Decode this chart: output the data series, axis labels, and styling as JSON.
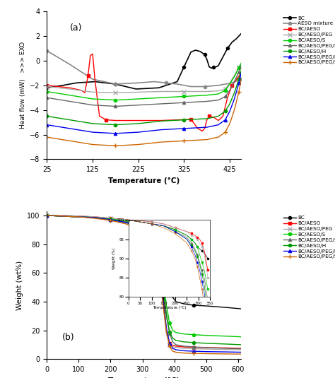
{
  "panel_a": {
    "title": "(a)",
    "xlabel": "Temperature (°C)",
    "ylabel": "Heat flow (mW)   >>> EXO",
    "xlim": [
      25,
      450
    ],
    "ylim": [
      -8,
      4
    ],
    "xticks": [
      25,
      125,
      225,
      325,
      425
    ],
    "yticks": [
      -8,
      -6,
      -4,
      -2,
      0,
      2,
      4
    ],
    "series": [
      {
        "label": "BC",
        "color": "#000000",
        "marker": "o",
        "lw": 1.2,
        "x": [
          25,
          60,
          90,
          130,
          175,
          220,
          270,
          310,
          325,
          340,
          350,
          360,
          370,
          375,
          380,
          385,
          390,
          395,
          400,
          410,
          420,
          430,
          440,
          450
        ],
        "y": [
          -2.2,
          -2.0,
          -1.8,
          -1.7,
          -1.9,
          -2.3,
          -2.2,
          -1.7,
          -0.5,
          0.7,
          0.85,
          0.75,
          0.5,
          0.1,
          -0.5,
          -0.6,
          -0.55,
          -0.5,
          -0.4,
          0.3,
          1.0,
          1.5,
          1.8,
          2.2
        ]
      },
      {
        "label": "AESO mixture",
        "color": "#888888",
        "marker": "o",
        "lw": 1.2,
        "x": [
          25,
          75,
          125,
          175,
          225,
          260,
          285,
          310,
          340,
          370,
          400,
          430,
          450
        ],
        "y": [
          0.8,
          -0.3,
          -1.5,
          -1.9,
          -1.8,
          -1.7,
          -1.8,
          -1.9,
          -2.1,
          -2.1,
          -2.0,
          -1.8,
          -1.5
        ]
      },
      {
        "label": "BC/AESO",
        "color": "#ff0000",
        "marker": "s",
        "lw": 1.0,
        "x": [
          25,
          50,
          75,
          100,
          108,
          115,
          120,
          125,
          130,
          140,
          155,
          175,
          225,
          275,
          310,
          340,
          355,
          365,
          370,
          375,
          380,
          390,
          400,
          410,
          420,
          430,
          440,
          450
        ],
        "y": [
          -2.0,
          -2.1,
          -2.2,
          -2.4,
          -2.6,
          -1.2,
          0.4,
          0.55,
          -1.5,
          -4.5,
          -4.8,
          -4.85,
          -4.85,
          -4.85,
          -4.8,
          -4.75,
          -5.5,
          -5.7,
          -5.5,
          -4.8,
          -4.5,
          -4.6,
          -4.85,
          -4.5,
          -3.0,
          -2.0,
          -1.5,
          -1.0
        ]
      },
      {
        "label": "BC/AESO/PEG",
        "color": "#aaaaaa",
        "marker": "x",
        "lw": 1.0,
        "x": [
          25,
          75,
          125,
          175,
          225,
          275,
          325,
          375,
          400,
          415,
          425,
          435,
          445,
          450
        ],
        "y": [
          -2.1,
          -2.3,
          -2.55,
          -2.6,
          -2.55,
          -2.5,
          -2.5,
          -2.5,
          -2.45,
          -2.3,
          -1.8,
          -1.2,
          -0.5,
          -0.2
        ]
      },
      {
        "label": "BC/AESO/S",
        "color": "#00cc00",
        "marker": "o",
        "lw": 1.0,
        "x": [
          25,
          75,
          125,
          175,
          225,
          275,
          325,
          375,
          400,
          415,
          425,
          435,
          445,
          450
        ],
        "y": [
          -2.5,
          -2.8,
          -3.1,
          -3.2,
          -3.1,
          -3.0,
          -2.9,
          -2.8,
          -2.7,
          -2.4,
          -1.9,
          -1.3,
          -0.6,
          -0.2
        ]
      },
      {
        "label": "BC/AESO/PEG/S",
        "color": "#666666",
        "marker": "^",
        "lw": 1.0,
        "x": [
          25,
          75,
          125,
          175,
          225,
          275,
          325,
          375,
          400,
          415,
          425,
          435,
          445,
          450
        ],
        "y": [
          -3.0,
          -3.3,
          -3.6,
          -3.7,
          -3.6,
          -3.5,
          -3.4,
          -3.3,
          -3.2,
          -2.9,
          -2.4,
          -1.7,
          -0.9,
          -0.4
        ]
      },
      {
        "label": "BC/AESO/H",
        "color": "#009900",
        "marker": "o",
        "lw": 1.0,
        "x": [
          25,
          75,
          125,
          175,
          225,
          275,
          325,
          375,
          400,
          415,
          425,
          435,
          445,
          450
        ],
        "y": [
          -4.5,
          -4.8,
          -5.1,
          -5.2,
          -5.1,
          -4.9,
          -4.8,
          -4.7,
          -4.5,
          -4.1,
          -3.5,
          -2.6,
          -1.5,
          -0.8
        ]
      },
      {
        "label": "BC/AESO/PEG/H",
        "color": "#0000ee",
        "marker": "^",
        "lw": 1.0,
        "x": [
          25,
          75,
          125,
          175,
          225,
          275,
          325,
          375,
          400,
          415,
          425,
          435,
          445,
          450
        ],
        "y": [
          -5.2,
          -5.5,
          -5.8,
          -5.9,
          -5.8,
          -5.6,
          -5.5,
          -5.4,
          -5.2,
          -4.8,
          -4.1,
          -3.1,
          -1.8,
          -1.0
        ]
      },
      {
        "label": "BC/AESO/PEG/S/H",
        "color": "#cc6600",
        "marker": "+",
        "lw": 1.0,
        "x": [
          25,
          75,
          125,
          175,
          225,
          275,
          325,
          375,
          400,
          415,
          425,
          435,
          445,
          450
        ],
        "y": [
          -6.2,
          -6.5,
          -6.8,
          -6.9,
          -6.8,
          -6.6,
          -6.5,
          -6.4,
          -6.2,
          -5.8,
          -5.1,
          -4.0,
          -2.5,
          -1.5
        ]
      }
    ]
  },
  "panel_b": {
    "title": "(b)",
    "xlabel": "Temperature (°C)",
    "ylabel": "Weight (wt%)",
    "xlim": [
      0,
      610
    ],
    "ylim": [
      0,
      103
    ],
    "xticks": [
      0,
      100,
      200,
      300,
      400,
      500,
      600
    ],
    "yticks": [
      0,
      20,
      40,
      60,
      80,
      100
    ],
    "series": [
      {
        "label": "BC",
        "color": "#000000",
        "marker": "o",
        "x": [
          0,
          50,
          100,
          150,
          200,
          250,
          270,
          285,
          295,
          305,
          315,
          325,
          340,
          355,
          365,
          375,
          385,
          395,
          405,
          430,
          460,
          500,
          560,
          610
        ],
        "y": [
          100,
          99.5,
          99,
          98.5,
          97.5,
          96,
          95,
          94,
          93,
          92.5,
          92,
          91.5,
          90,
          88.5,
          82,
          65,
          50,
          43,
          40,
          38.5,
          37.5,
          37,
          36,
          35
        ]
      },
      {
        "label": "BC/AESO",
        "color": "#ff0000",
        "marker": "s",
        "x": [
          0,
          50,
          100,
          150,
          200,
          250,
          270,
          285,
          295,
          305,
          315,
          325,
          340,
          355,
          365,
          375,
          385,
          395,
          405,
          430,
          460,
          500,
          560,
          610
        ],
        "y": [
          100,
          99.8,
          99.5,
          99,
          98,
          97,
          96.5,
          96,
          95.5,
          95,
          94,
          92,
          87,
          70,
          45,
          20,
          11,
          9.5,
          9,
          8.5,
          8.2,
          8.0,
          7.8,
          7.5
        ]
      },
      {
        "label": "BC/AESO/PEG",
        "color": "#aaaaaa",
        "marker": "x",
        "x": [
          0,
          50,
          100,
          150,
          200,
          250,
          270,
          285,
          295,
          305,
          315,
          325,
          340,
          355,
          365,
          375,
          385,
          395,
          405,
          430,
          460,
          500,
          560,
          610
        ],
        "y": [
          100,
          99.8,
          99.5,
          99,
          98,
          97,
          96,
          95.5,
          95,
          94,
          93,
          91,
          85,
          67,
          40,
          18,
          10,
          8.5,
          8,
          7.5,
          7.2,
          7.0,
          6.7,
          6.5
        ]
      },
      {
        "label": "BC/AESO/S",
        "color": "#00cc00",
        "marker": "o",
        "x": [
          0,
          50,
          100,
          150,
          200,
          250,
          270,
          285,
          295,
          305,
          315,
          325,
          340,
          355,
          365,
          375,
          385,
          395,
          405,
          430,
          460,
          500,
          560,
          610
        ],
        "y": [
          100,
          99.5,
          99,
          98.5,
          97.5,
          96,
          95,
          94,
          93,
          91,
          89,
          87,
          82,
          72,
          56,
          38,
          25,
          20,
          18.5,
          17.5,
          17,
          16.5,
          16,
          15.5
        ]
      },
      {
        "label": "BC/AESO/PEG/S",
        "color": "#666666",
        "marker": "^",
        "x": [
          0,
          50,
          100,
          150,
          200,
          250,
          270,
          285,
          295,
          305,
          315,
          325,
          340,
          355,
          365,
          375,
          385,
          395,
          405,
          430,
          460,
          500,
          560,
          610
        ],
        "y": [
          100,
          99.5,
          99,
          98.5,
          97,
          95.5,
          94,
          92.5,
          91,
          89,
          87,
          85,
          79,
          67,
          50,
          32,
          18,
          12,
          10,
          9,
          8.5,
          8.0,
          7.5,
          7.2
        ]
      },
      {
        "label": "BC/AESO/H",
        "color": "#009900",
        "marker": "o",
        "x": [
          0,
          50,
          100,
          150,
          200,
          250,
          270,
          285,
          295,
          305,
          315,
          325,
          340,
          355,
          365,
          375,
          385,
          395,
          405,
          430,
          460,
          500,
          560,
          610
        ],
        "y": [
          100,
          99.5,
          99,
          98.5,
          97,
          95,
          93.5,
          92,
          90.5,
          88.5,
          86,
          83,
          76,
          63,
          47,
          30,
          19,
          14.5,
          13,
          12,
          11.5,
          11,
          10.5,
          10
        ]
      },
      {
        "label": "BC/AESO/PEG/H",
        "color": "#0000ee",
        "marker": "^",
        "x": [
          0,
          50,
          100,
          150,
          200,
          250,
          270,
          285,
          295,
          305,
          315,
          325,
          340,
          355,
          365,
          375,
          385,
          395,
          405,
          430,
          460,
          500,
          560,
          610
        ],
        "y": [
          100,
          99.5,
          99,
          98.5,
          97,
          95,
          93,
          91,
          89,
          87,
          84,
          81,
          73,
          58,
          40,
          22,
          11,
          7.5,
          6.5,
          5.8,
          5.5,
          5.2,
          5.0,
          4.8
        ]
      },
      {
        "label": "BC/AESO/PEG/S/H",
        "color": "#cc6600",
        "marker": "+",
        "x": [
          0,
          50,
          100,
          150,
          200,
          250,
          270,
          285,
          295,
          305,
          315,
          325,
          340,
          355,
          365,
          375,
          385,
          395,
          405,
          430,
          460,
          500,
          560,
          610
        ],
        "y": [
          100,
          99.5,
          99,
          98,
          96.5,
          94,
          92,
          90,
          88,
          85,
          82,
          78,
          70,
          55,
          37,
          19,
          9,
          5.5,
          4.8,
          4.2,
          4.0,
          3.8,
          3.6,
          3.5
        ]
      }
    ],
    "inset": {
      "xlim": [
        0,
        350
      ],
      "ylim": [
        80,
        100
      ],
      "xlabel": "Temperature (°C)",
      "ylabel": "Weight (%)"
    }
  }
}
